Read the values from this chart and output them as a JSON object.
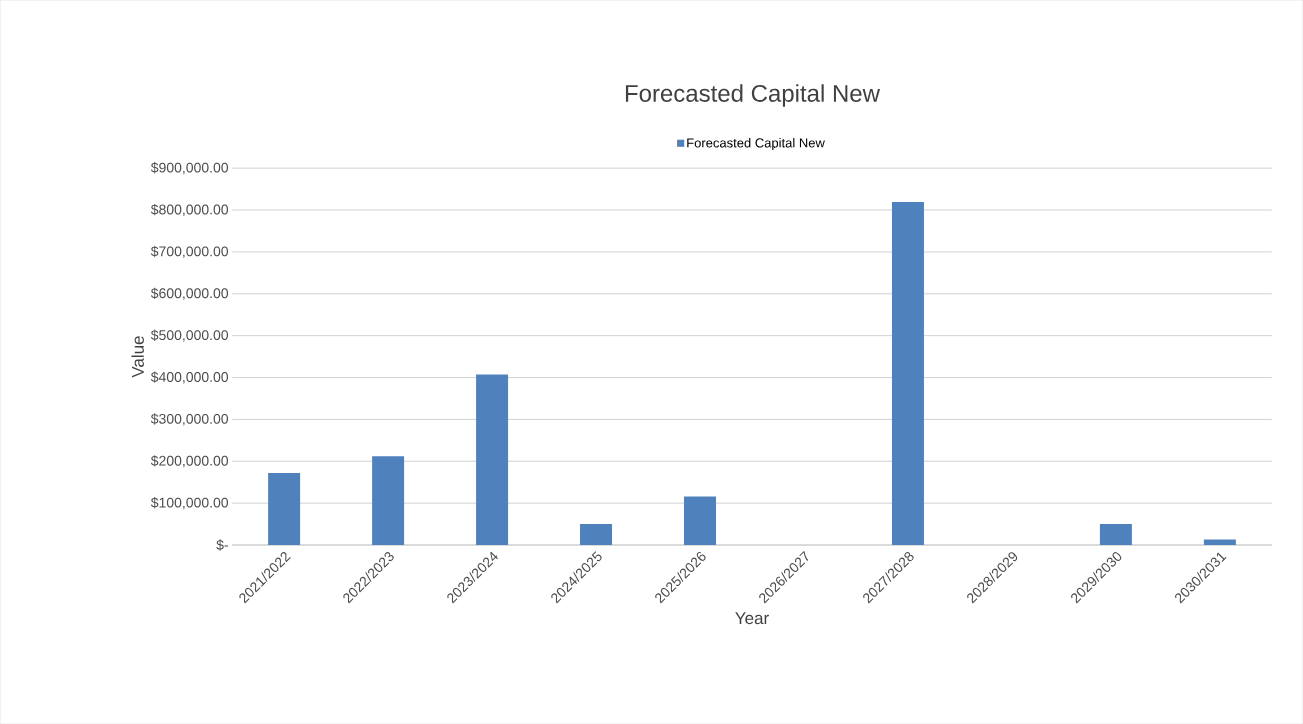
{
  "chart_data": {
    "type": "bar",
    "title": "Forecasted Capital New",
    "xlabel": "Year",
    "ylabel": "Value",
    "categories": [
      "2021/2022",
      "2022/2023",
      "2023/2024",
      "2024/2025",
      "2025/2026",
      "2026/2027",
      "2027/2028",
      "2028/2029",
      "2029/2030",
      "2030/2031"
    ],
    "series": [
      {
        "name": "Forecasted Capital New",
        "color": "#4f81bd",
        "values": [
          172000,
          212000,
          407000,
          50000,
          116000,
          0,
          819000,
          0,
          50000,
          13000
        ]
      }
    ],
    "ylim": [
      0,
      900000
    ],
    "yticks": [
      {
        "value": 0,
        "label": "$-"
      },
      {
        "value": 100000,
        "label": "$100,000.00"
      },
      {
        "value": 200000,
        "label": "$200,000.00"
      },
      {
        "value": 300000,
        "label": "$300,000.00"
      },
      {
        "value": 400000,
        "label": "$400,000.00"
      },
      {
        "value": 500000,
        "label": "$500,000.00"
      },
      {
        "value": 600000,
        "label": "$600,000.00"
      },
      {
        "value": 700000,
        "label": "$700,000.00"
      },
      {
        "value": 800000,
        "label": "$800,000.00"
      },
      {
        "value": 900000,
        "label": "$900,000.00"
      }
    ],
    "grid": "y",
    "legend": "top"
  }
}
